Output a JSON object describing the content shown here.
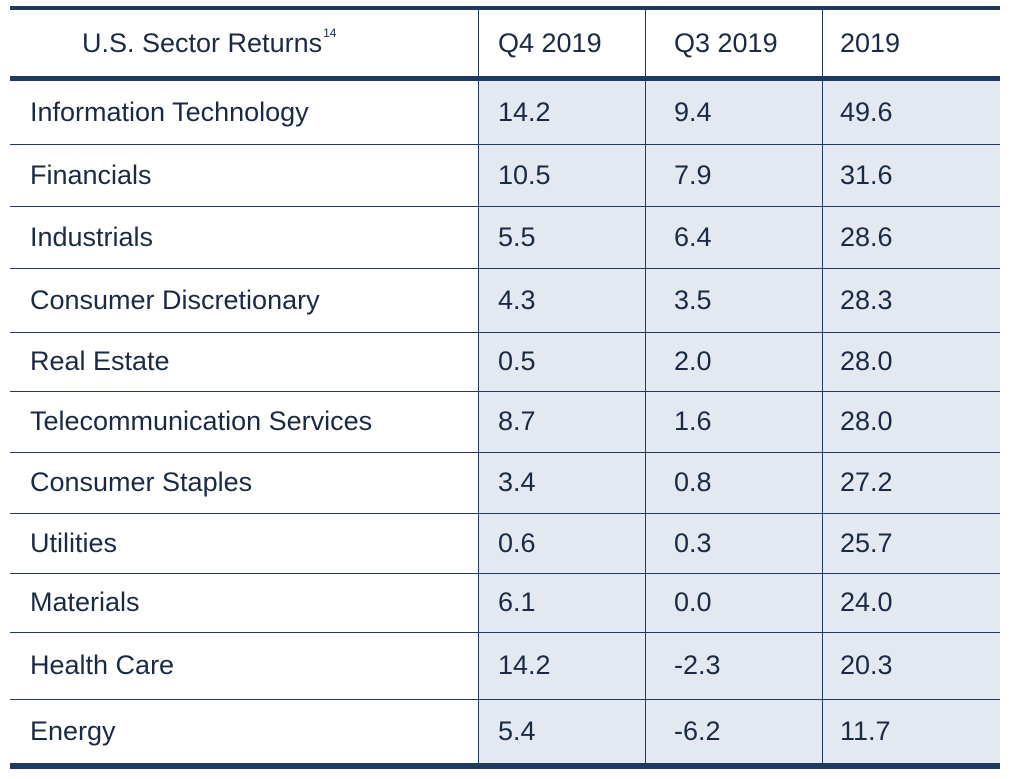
{
  "chart_data": {
    "type": "table",
    "title": "U.S. Sector Returns",
    "title_footnote": "14",
    "columns": [
      "Q4 2019",
      "Q3 2019",
      "2019"
    ],
    "rows": [
      {
        "sector": "Information Technology",
        "values": [
          "14.2",
          "9.4",
          "49.6"
        ]
      },
      {
        "sector": "Financials",
        "values": [
          "10.5",
          "7.9",
          "31.6"
        ]
      },
      {
        "sector": "Industrials",
        "values": [
          "5.5",
          "6.4",
          "28.6"
        ]
      },
      {
        "sector": "Consumer Discretionary",
        "values": [
          "4.3",
          "3.5",
          "28.3"
        ]
      },
      {
        "sector": "Real Estate",
        "values": [
          "0.5",
          "2.0",
          "28.0"
        ]
      },
      {
        "sector": "Telecommunication Services",
        "values": [
          "8.7",
          "1.6",
          "28.0"
        ]
      },
      {
        "sector": "Consumer Staples",
        "values": [
          "3.4",
          "0.8",
          "27.2"
        ]
      },
      {
        "sector": "Utilities",
        "values": [
          "0.6",
          "0.3",
          "25.7"
        ]
      },
      {
        "sector": "Materials",
        "values": [
          "6.1",
          "0.0",
          "24.0"
        ]
      },
      {
        "sector": "Health Care",
        "values": [
          "14.2",
          "-2.3",
          "20.3"
        ]
      },
      {
        "sector": "Energy",
        "values": [
          "5.4",
          "-6.2",
          "11.7"
        ]
      }
    ],
    "colors": {
      "rule": "#1f3a5f",
      "shade": "#e4e8f0",
      "text": "#1b2a44"
    }
  }
}
